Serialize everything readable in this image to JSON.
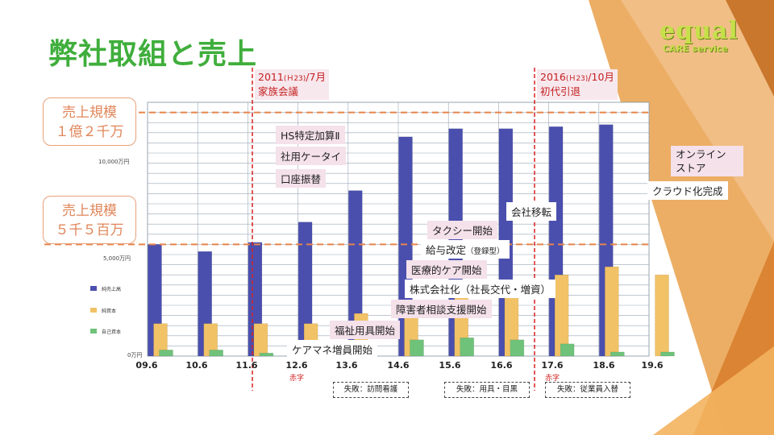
{
  "slide": {
    "title": "弊社取組と売上",
    "logo": {
      "main": "equal",
      "sub": "CARE service"
    }
  },
  "scale_boxes": [
    {
      "line1": "売上規模",
      "line2": "１億２千万"
    },
    {
      "line1": "売上規模",
      "line2": "５千５百万"
    }
  ],
  "events": [
    {
      "year": "2011",
      "era": "(Ｈ23)",
      "month": "/7月",
      "name": "家族会議"
    },
    {
      "year": "2016",
      "era": "(Ｈ23)",
      "month": "/10月",
      "name": "初代引退"
    }
  ],
  "initiatives": {
    "hs": "HS特定加算Ⅱ",
    "phone": "社用ケータイ",
    "bank": "口座振替",
    "move": "会社移転",
    "online": "オンライン ストア",
    "cloud": "クラウド化完成",
    "taxi": "タクシー開始",
    "salary": "給与改定",
    "salary_note": "（登録型）",
    "medical": "医療的ケア開始",
    "corp": "株式会社化（社長交代・増資）",
    "disability": "障害者相談支援開始",
    "welfare": "福祉用具開始",
    "caremane": "ケアマネ増員開始"
  },
  "failures": [
    "失敗：訪問看護",
    "失敗：用具・目黒",
    "失敗：従業員入替"
  ],
  "deficit_label": "赤字",
  "y_axis_labels": [
    "10,000万円",
    "5,000万円",
    "0万円"
  ],
  "colors": {
    "title": "#3fae3c",
    "bar_sales": "#4a4fae",
    "bar_capital": "#f1c266",
    "bar_equity": "#6fc27a",
    "dash_orange": "#e8844a",
    "red_line": "#d92020"
  },
  "chart_data": {
    "type": "bar",
    "categories": [
      "09.6",
      "10.6",
      "11.6",
      "12.6",
      "13.6",
      "14.6",
      "15.6",
      "16.6",
      "17.6",
      "18.6",
      "19.6"
    ],
    "series": [
      {
        "name": "純売上高",
        "values": [
          5500,
          5150,
          5600,
          6600,
          8150,
          10800,
          11200,
          11200,
          11300,
          11400,
          null
        ]
      },
      {
        "name": "純資本",
        "values": [
          1600,
          1600,
          1600,
          1600,
          2100,
          2700,
          3400,
          3700,
          4000,
          4400,
          4000
        ]
      },
      {
        "name": "自己資本",
        "values": [
          300,
          300,
          150,
          150,
          500,
          800,
          900,
          800,
          600,
          200,
          200
        ]
      }
    ],
    "ylim": [
      0,
      12500
    ],
    "reference_lines": [
      12000,
      5500
    ],
    "xlabel": "",
    "ylabel": ""
  }
}
